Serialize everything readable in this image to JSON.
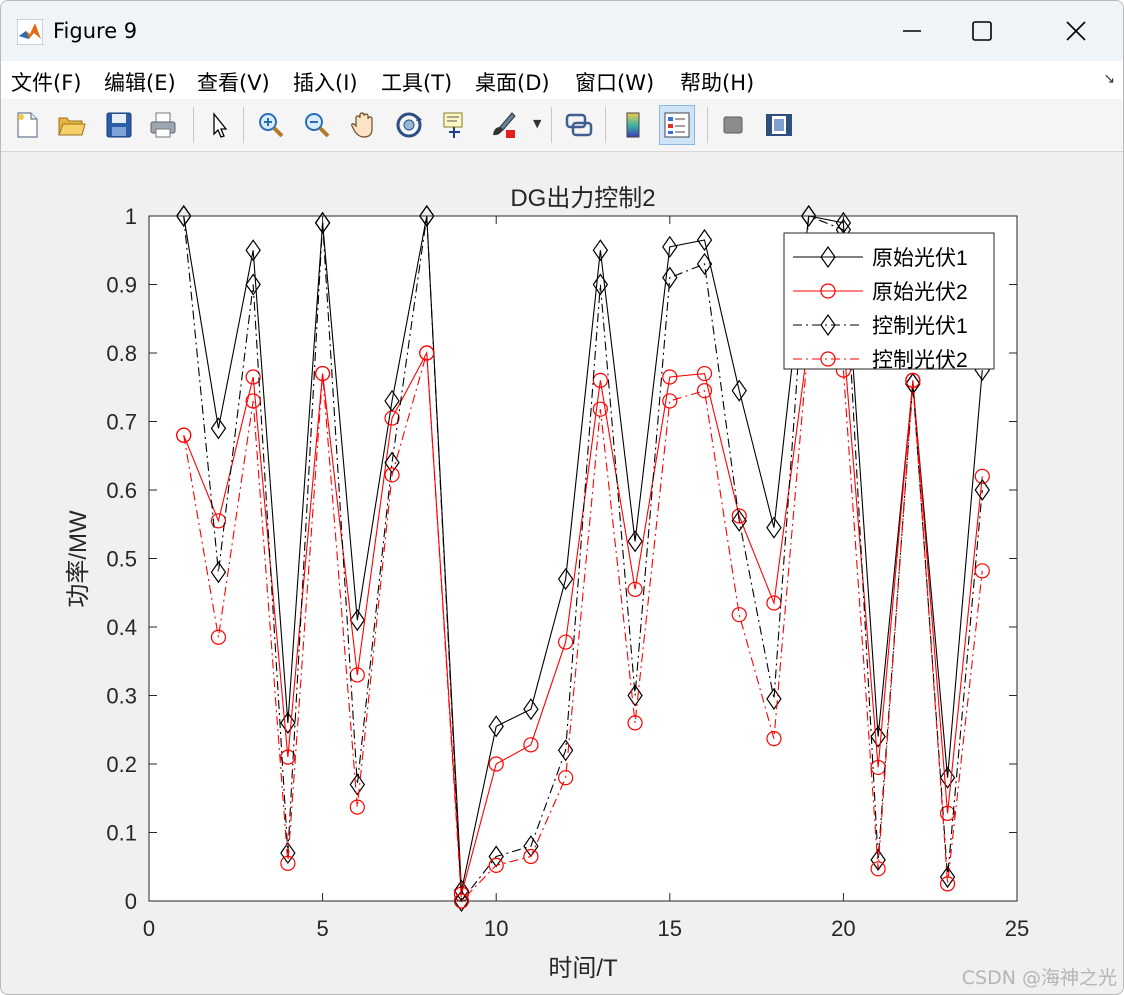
{
  "window": {
    "title": "Figure 9",
    "minimize_icon": "minimize-icon",
    "maximize_icon": "maximize-icon",
    "close_icon": "close-icon"
  },
  "menu": {
    "items": [
      "文件(F)",
      "编辑(E)",
      "查看(V)",
      "插入(I)",
      "工具(T)",
      "桌面(D)",
      "窗口(W)",
      "帮助(H)"
    ],
    "overflow_icon": "dock-arrow-icon"
  },
  "toolbar": {
    "icons": [
      "new-figure-icon",
      "open-file-icon",
      "save-icon",
      "print-icon",
      "select-arrow-icon",
      "zoom-in-icon",
      "zoom-out-icon",
      "pan-hand-icon",
      "rotate-3d-icon",
      "data-cursor-icon",
      "brush-icon",
      "link-plot-icon",
      "colorbar-icon",
      "legend-icon",
      "hide-plot-tools-icon",
      "show-plot-tools-icon"
    ]
  },
  "chart_data": {
    "type": "line",
    "title": "DG出力控制2",
    "xlabel": "时间/T",
    "ylabel": "功率/MW",
    "xlim": [
      0,
      25
    ],
    "ylim": [
      0,
      1
    ],
    "xticks": [
      0,
      5,
      10,
      15,
      20,
      25
    ],
    "yticks": [
      "0",
      "0.1",
      "0.2",
      "0.3",
      "0.4",
      "0.5",
      "0.6",
      "0.7",
      "0.8",
      "0.9",
      "1"
    ],
    "grid": false,
    "legend_position": "top-right",
    "x": [
      1,
      2,
      3,
      4,
      5,
      6,
      7,
      8,
      9,
      10,
      11,
      12,
      13,
      14,
      15,
      16,
      17,
      18,
      19,
      20,
      21,
      22,
      23,
      24
    ],
    "series": [
      {
        "name": "原始光伏1",
        "color": "#000000",
        "style": "solid",
        "marker": "diamond",
        "values": [
          1.0,
          0.69,
          0.95,
          0.26,
          0.99,
          0.41,
          0.73,
          1.0,
          0.015,
          0.255,
          0.28,
          0.47,
          0.95,
          0.525,
          0.955,
          0.965,
          0.745,
          0.545,
          1.0,
          0.99,
          0.24,
          0.755,
          0.18,
          0.775
        ]
      },
      {
        "name": "原始光伏2",
        "color": "#ff0000",
        "style": "solid",
        "marker": "circle",
        "values": [
          0.68,
          0.555,
          0.765,
          0.21,
          0.77,
          0.33,
          0.705,
          0.8,
          0.01,
          0.2,
          0.228,
          0.378,
          0.76,
          0.455,
          0.765,
          0.77,
          0.562,
          0.435,
          0.82,
          0.82,
          0.195,
          0.76,
          0.128,
          0.62
        ]
      },
      {
        "name": "控制光伏1",
        "color": "#000000",
        "style": "dashdot",
        "marker": "diamond",
        "values": [
          1.0,
          0.48,
          0.9,
          0.07,
          0.99,
          0.17,
          0.64,
          1.0,
          0.0,
          0.065,
          0.08,
          0.22,
          0.9,
          0.3,
          0.91,
          0.93,
          0.555,
          0.295,
          1.0,
          0.98,
          0.06,
          0.755,
          0.035,
          0.6
        ]
      },
      {
        "name": "控制光伏2",
        "color": "#ff0000",
        "style": "dashdot",
        "marker": "circle",
        "values": [
          0.68,
          0.385,
          0.73,
          0.055,
          0.77,
          0.137,
          0.622,
          0.8,
          0.0,
          0.052,
          0.065,
          0.18,
          0.718,
          0.26,
          0.73,
          0.745,
          0.418,
          0.237,
          0.82,
          0.775,
          0.047,
          0.76,
          0.025,
          0.482
        ]
      }
    ]
  },
  "watermark": "CSDN @海神之光"
}
